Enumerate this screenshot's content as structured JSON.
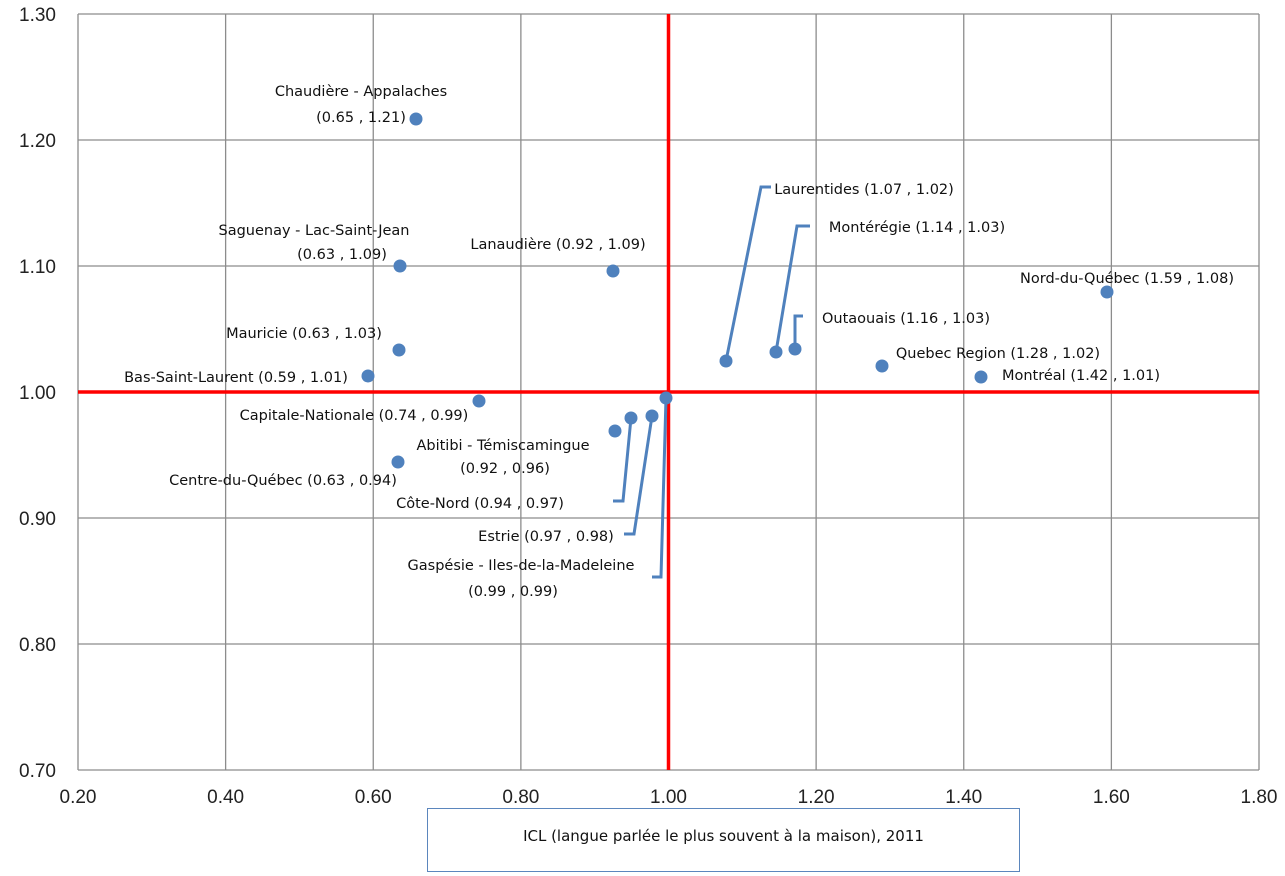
{
  "chart_data": {
    "type": "scatter",
    "title": "",
    "xlabel": "ICL (langue parlée le plus souvent à la maison), 2011",
    "ylabel": "",
    "xlim": [
      0.2,
      1.8
    ],
    "ylim": [
      0.7,
      1.3
    ],
    "x_ticks": [
      "0.20",
      "0.40",
      "0.60",
      "0.80",
      "1.00",
      "1.20",
      "1.40",
      "1.60",
      "1.80"
    ],
    "y_ticks": [
      "0.70",
      "0.80",
      "0.90",
      "1.00",
      "1.10",
      "1.20",
      "1.30"
    ],
    "grid": true,
    "reference_lines": {
      "x": 1.0,
      "y": 1.0,
      "color": "#ff0000"
    },
    "point_color": "#4f81bd",
    "leader_color": "#4f81bd",
    "points": [
      {
        "name": "chaudiere-appalaches",
        "x": 0.65,
        "y": 1.21,
        "label": [
          "Chaudière - Appalaches",
          "(0.65 , 1.21)"
        ]
      },
      {
        "name": "saguenay-lac-saint-jean",
        "x": 0.63,
        "y": 1.09,
        "label": [
          "Saguenay - Lac-Saint-Jean",
          "(0.63 , 1.09)"
        ]
      },
      {
        "name": "lanaudiere",
        "x": 0.92,
        "y": 1.09,
        "label": [
          "Lanaudière (0.92 , 1.09)"
        ]
      },
      {
        "name": "mauricie",
        "x": 0.63,
        "y": 1.03,
        "label": [
          "Mauricie (0.63 , 1.03)"
        ]
      },
      {
        "name": "bas-saint-laurent",
        "x": 0.59,
        "y": 1.01,
        "label": [
          "Bas-Saint-Laurent (0.59 , 1.01)"
        ]
      },
      {
        "name": "capitale-nationale",
        "x": 0.74,
        "y": 0.99,
        "label": [
          "Capitale-Nationale (0.74 , 0.99)"
        ]
      },
      {
        "name": "abitibi-temiscamingue",
        "x": 0.92,
        "y": 0.96,
        "label": [
          "Abitibi - Témiscamingue",
          "(0.92 , 0.96)"
        ]
      },
      {
        "name": "centre-du-quebec",
        "x": 0.63,
        "y": 0.94,
        "label": [
          "Centre-du-Québec (0.63 , 0.94)"
        ]
      },
      {
        "name": "cote-nord",
        "x": 0.94,
        "y": 0.97,
        "label": [
          "Côte-Nord (0.94 , 0.97)"
        ]
      },
      {
        "name": "estrie",
        "x": 0.97,
        "y": 0.98,
        "label": [
          "Estrie (0.97 , 0.98)"
        ]
      },
      {
        "name": "gaspesie-iles-de-la-madeleine",
        "x": 0.99,
        "y": 0.99,
        "label": [
          "Gaspésie - Iles-de-la-Madeleine",
          "(0.99 , 0.99)"
        ]
      },
      {
        "name": "laurentides",
        "x": 1.07,
        "y": 1.02,
        "label": [
          "Laurentides (1.07 , 1.02)"
        ]
      },
      {
        "name": "monteregie",
        "x": 1.14,
        "y": 1.03,
        "label": [
          "Montérégie (1.14 , 1.03)"
        ]
      },
      {
        "name": "outaouais",
        "x": 1.16,
        "y": 1.03,
        "label": [
          "Outaouais (1.16 , 1.03)"
        ]
      },
      {
        "name": "nord-du-quebec",
        "x": 1.59,
        "y": 1.08,
        "label": [
          "Nord-du-Québec (1.59 , 1.08)"
        ]
      },
      {
        "name": "quebec-region",
        "x": 1.28,
        "y": 1.02,
        "label": [
          "Quebec Region (1.28 , 1.02)"
        ]
      },
      {
        "name": "montreal",
        "x": 1.42,
        "y": 1.01,
        "label": [
          "Montréal (1.42 , 1.01)"
        ]
      }
    ]
  }
}
